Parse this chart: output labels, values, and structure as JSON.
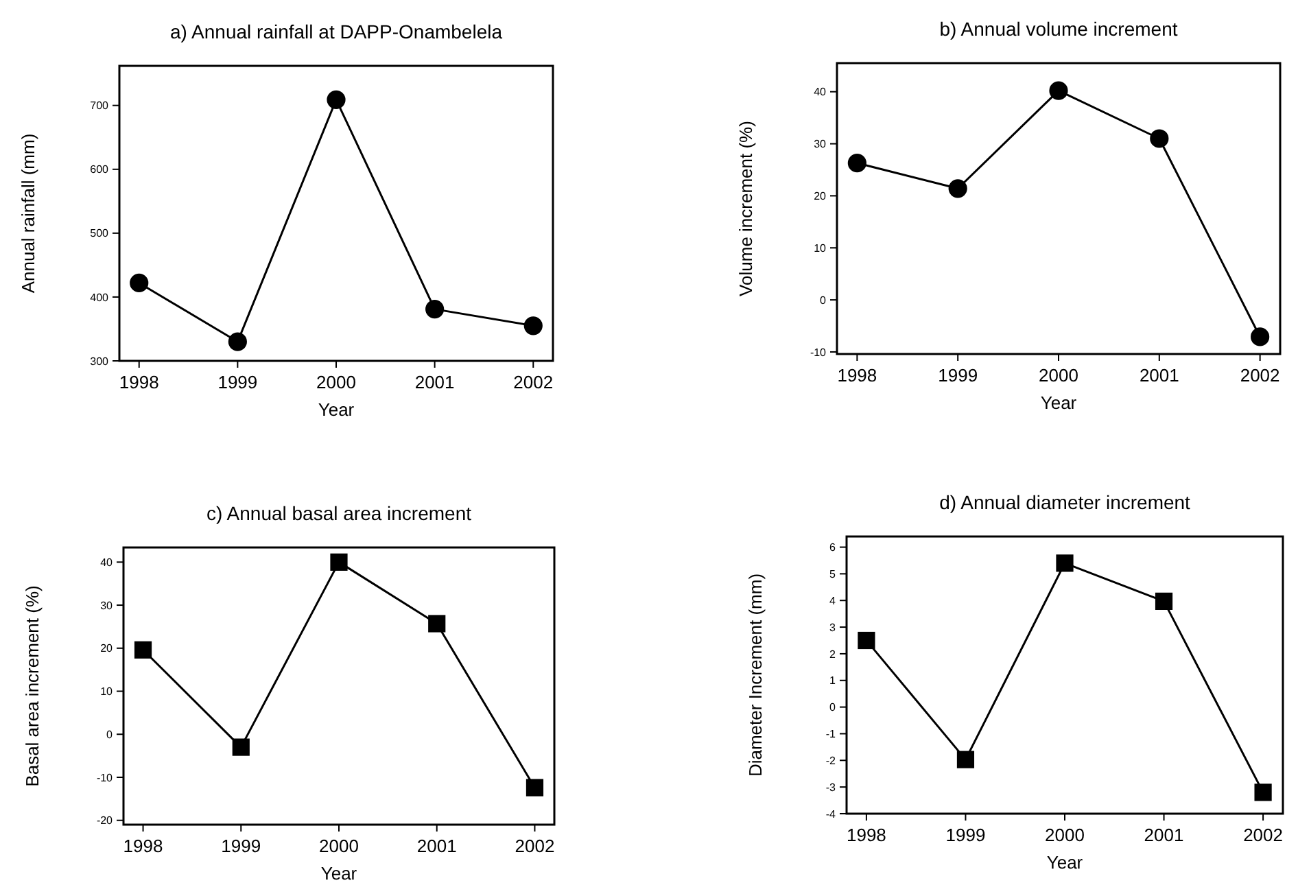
{
  "chart_data": [
    {
      "type": "line",
      "title": "a) Annual rainfall at DAPP-Onambelela",
      "xlabel": "Year",
      "ylabel": "Annual rainfall (mm)",
      "x": [
        1998,
        1999,
        2000,
        2001,
        2002
      ],
      "xlim": [
        1997.8,
        2002.2
      ],
      "xticks": [
        1998,
        1999,
        2000,
        2001,
        2002
      ],
      "ylim": [
        300,
        762
      ],
      "yticks": [
        300,
        400,
        500,
        600,
        700
      ],
      "marker": "circle",
      "line_style": "solid",
      "series": [
        {
          "color": "#000000",
          "values": [
            422,
            330,
            709,
            381,
            355
          ]
        }
      ]
    },
    {
      "type": "line",
      "title": "b) Annual volume increment",
      "xlabel": "Year",
      "ylabel": "Volume increment (%)",
      "x": [
        1998,
        1999,
        2000,
        2001,
        2002
      ],
      "xlim": [
        1997.8,
        2002.2
      ],
      "xticks": [
        1998,
        1999,
        2000,
        2001,
        2002
      ],
      "ylim": [
        -10.4,
        45.5
      ],
      "yticks": [
        -10,
        0,
        10,
        20,
        30,
        40
      ],
      "marker": "circle",
      "line_style": "solid",
      "series": [
        {
          "color": "#000000",
          "values": [
            26.3,
            21.4,
            40.2,
            31,
            -7.1
          ]
        }
      ]
    },
    {
      "type": "line",
      "title": "c) Annual basal area increment",
      "xlabel": "Year",
      "ylabel": "Basal area increment (%)",
      "x": [
        1998,
        1999,
        2000,
        2001,
        2002
      ],
      "xlim": [
        1997.8,
        2002.2
      ],
      "xticks": [
        1998,
        1999,
        2000,
        2001,
        2002
      ],
      "ylim": [
        -21,
        43.4
      ],
      "yticks": [
        -20,
        -10,
        0,
        10,
        20,
        30,
        40
      ],
      "marker": "square",
      "line_style": "solid",
      "series": [
        {
          "color": "#000000",
          "values": [
            19.6,
            -3,
            40,
            25.7,
            -12.4
          ]
        }
      ]
    },
    {
      "type": "line",
      "title": "d) Annual diameter increment",
      "xlabel": "Year",
      "ylabel": "Diameter Increment (mm)",
      "x": [
        1998,
        1999,
        2000,
        2001,
        2002
      ],
      "xlim": [
        1997.8,
        2002.2
      ],
      "xticks": [
        1998,
        1999,
        2000,
        2001,
        2002
      ],
      "ylim": [
        -4,
        6.4
      ],
      "yticks": [
        -4,
        -3,
        -2,
        -1,
        0,
        1,
        2,
        3,
        4,
        5,
        6
      ],
      "marker": "square",
      "line_style": "solid",
      "series": [
        {
          "color": "#000000",
          "values": [
            2.5,
            -1.97,
            5.4,
            3.97,
            -3.2
          ]
        }
      ]
    }
  ]
}
